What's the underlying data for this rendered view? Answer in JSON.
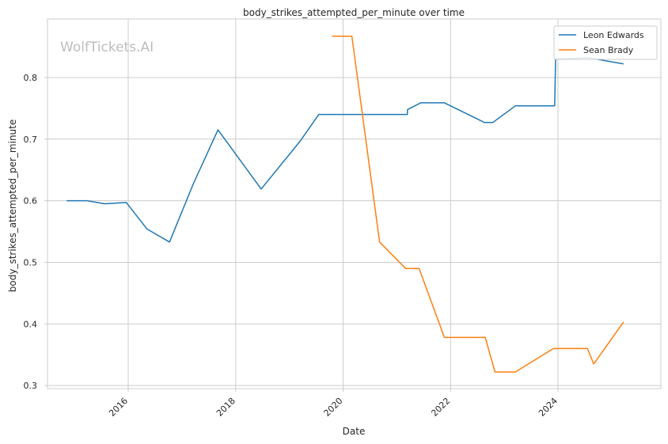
{
  "chart_data": {
    "type": "line",
    "title": "body_strikes_attempted_per_minute over time",
    "xlabel": "Date",
    "ylabel": "body_strikes_attempted_per_minute",
    "watermark": "WolfTickets.AI",
    "x_ticks": [
      "2016",
      "2018",
      "2020",
      "2022",
      "2024"
    ],
    "y_ticks": [
      "0.3",
      "0.4",
      "0.5",
      "0.6",
      "0.7",
      "0.8"
    ],
    "xlim": [
      "2014-07-01",
      "2025-12-01"
    ],
    "ylim": [
      0.295,
      0.895
    ],
    "grid": true,
    "legend_position": "top-right",
    "series": [
      {
        "name": "Leon Edwards",
        "color": "#1f77b4",
        "points": [
          [
            "2014-11-08",
            0.6
          ],
          [
            "2015-03-27",
            0.6
          ],
          [
            "2015-07-25",
            0.595
          ],
          [
            "2015-12-19",
            0.597
          ],
          [
            "2016-05-08",
            0.554
          ],
          [
            "2016-10-08",
            0.533
          ],
          [
            "2017-03-18",
            0.627
          ],
          [
            "2017-09-02",
            0.715
          ],
          [
            "2018-06-23",
            0.619
          ],
          [
            "2019-03-16",
            0.697
          ],
          [
            "2019-07-20",
            0.74
          ],
          [
            "2021-03-13",
            0.74
          ],
          [
            "2021-03-14",
            0.748
          ],
          [
            "2021-06-12",
            0.759
          ],
          [
            "2021-11-20",
            0.759
          ],
          [
            "2022-08-20",
            0.727
          ],
          [
            "2022-10-15",
            0.727
          ],
          [
            "2023-03-18",
            0.754
          ],
          [
            "2023-12-10",
            0.754
          ],
          [
            "2023-12-16",
            0.83
          ],
          [
            "2024-07-27",
            0.832
          ],
          [
            "2025-03-22",
            0.822
          ]
        ]
      },
      {
        "name": "Sean Brady",
        "color": "#ff7f0e",
        "points": [
          [
            "2019-10-18",
            0.867
          ],
          [
            "2020-03-01",
            0.867
          ],
          [
            "2020-09-05",
            0.533
          ],
          [
            "2021-03-01",
            0.49
          ],
          [
            "2021-06-01",
            0.49
          ],
          [
            "2021-11-20",
            0.378
          ],
          [
            "2022-08-25",
            0.378
          ],
          [
            "2022-10-30",
            0.322
          ],
          [
            "2023-03-18",
            0.322
          ],
          [
            "2023-12-01",
            0.36
          ],
          [
            "2024-07-20",
            0.36
          ],
          [
            "2024-08-31",
            0.335
          ],
          [
            "2025-03-22",
            0.403
          ]
        ]
      }
    ]
  }
}
